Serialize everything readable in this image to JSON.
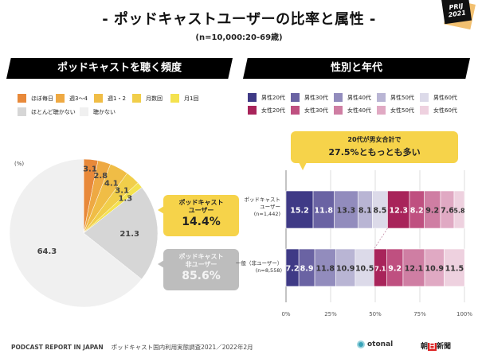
{
  "header": {
    "title": "- ポッドキャストユーザーの比率と属性 -",
    "subtitle": "(n=10,000:20-69歳)",
    "badge_line1": "PRIJ",
    "badge_line2": "2021"
  },
  "left": {
    "section_title": "ポッドキャストを聴く頻度",
    "unit_label": "(%)",
    "callout_user": {
      "line1": "ポッドキャスト",
      "line2": "ユーザー",
      "value": "14.4%"
    },
    "callout_non": {
      "line1": "ポッドキャスト",
      "line2": "非ユーザー",
      "value": "85.6%"
    }
  },
  "right": {
    "section_title": "性別と年代",
    "note_line1": "20代が男女合計で",
    "note_line2": "27.5%ともっとも多い",
    "row_labels": [
      {
        "line1": "ポッドキャスト",
        "line2": "ユーザー",
        "line3": "(n=1,442)"
      },
      {
        "line1": "一般（非ユーザー）",
        "line2": "(n=8,558)"
      }
    ]
  },
  "footer": {
    "report": "PODCAST REPORT IN JAPAN",
    "survey": "ポッドキャスト国内利用実態調査2021／2022年2月",
    "logo1": "otonal",
    "logo2_a": "朝",
    "logo2_b": "日",
    "logo2_c": "新聞"
  },
  "chart_data": [
    {
      "type": "pie",
      "title": "ポッドキャストを聴く頻度",
      "unit": "%",
      "start": "top",
      "direction": "clockwise",
      "categories": [
        "ほぼ毎日",
        "週3〜4",
        "週1・2",
        "月数回",
        "月1回",
        "ほとんど聴かない",
        "聴かない"
      ],
      "values": [
        3.1,
        2.8,
        4.1,
        3.1,
        1.3,
        21.3,
        64.3
      ],
      "colors": [
        "#e8893a",
        "#eea943",
        "#f0bd46",
        "#f1ce4a",
        "#f4e24f",
        "#d6d6d6",
        "#f0f0f0"
      ],
      "legend": "top"
    },
    {
      "type": "bar",
      "orientation": "horizontal",
      "stacked": true,
      "title": "性別と年代",
      "categories": [
        "ポッドキャストユーザー (n=1,442)",
        "一般（非ユーザー） (n=8,558)"
      ],
      "xlim": [
        0,
        100
      ],
      "xticks": [
        "0%",
        "25%",
        "50%",
        "75%",
        "100%"
      ],
      "grid": true,
      "legend": "top",
      "series": [
        {
          "name": "男性20代",
          "color": "#3f3a86",
          "label_color": "#ffffff",
          "values": [
            15.2,
            7.2
          ]
        },
        {
          "name": "男性30代",
          "color": "#6a63a3",
          "label_color": "#ffffff",
          "values": [
            11.8,
            8.9
          ]
        },
        {
          "name": "男性40代",
          "color": "#928cbd",
          "label_color": "#333333",
          "values": [
            13.3,
            11.8
          ]
        },
        {
          "name": "男性50代",
          "color": "#b9b5d4",
          "label_color": "#333333",
          "values": [
            8.1,
            10.9
          ]
        },
        {
          "name": "男性60代",
          "color": "#dcdae9",
          "label_color": "#333333",
          "values": [
            8.5,
            10.5
          ]
        },
        {
          "name": "女性20代",
          "color": "#a8245a",
          "label_color": "#ffffff",
          "values": [
            12.3,
            7.1
          ]
        },
        {
          "name": "女性30代",
          "color": "#bf5080",
          "label_color": "#ffffff",
          "values": [
            8.2,
            9.2
          ]
        },
        {
          "name": "女性40代",
          "color": "#cf7ea3",
          "label_color": "#333333",
          "values": [
            9.2,
            12.1
          ]
        },
        {
          "name": "女性50代",
          "color": "#e0a9c3",
          "label_color": "#333333",
          "values": [
            7.6,
            10.9
          ]
        },
        {
          "name": "女性60代",
          "color": "#eed1df",
          "label_color": "#333333",
          "values": [
            5.8,
            11.5
          ]
        }
      ]
    }
  ]
}
